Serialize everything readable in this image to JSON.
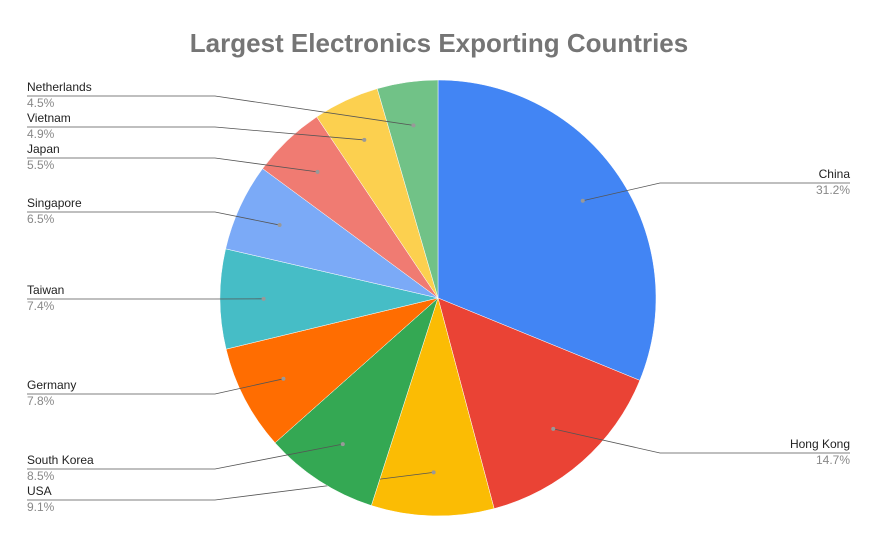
{
  "chart_data": {
    "type": "pie",
    "title": "Largest Electronics Exporting Countries",
    "categories": [
      "China",
      "Hong Kong",
      "USA",
      "South Korea",
      "Germany",
      "Taiwan",
      "Singapore",
      "Japan",
      "Vietnam",
      "Netherlands"
    ],
    "values": [
      31.2,
      14.7,
      9.1,
      8.5,
      7.8,
      7.4,
      6.5,
      5.5,
      4.9,
      4.5
    ],
    "value_labels": [
      "31.2%",
      "14.7%",
      "9.1%",
      "8.5%",
      "7.8%",
      "7.4%",
      "6.5%",
      "5.5%",
      "4.9%",
      "4.5%"
    ],
    "colors": [
      "#4285f4",
      "#ea4335",
      "#fbbc04",
      "#34a853",
      "#ff6d01",
      "#46bdc6",
      "#7baaf7",
      "#f07b72",
      "#fcd04f",
      "#71c287"
    ]
  }
}
